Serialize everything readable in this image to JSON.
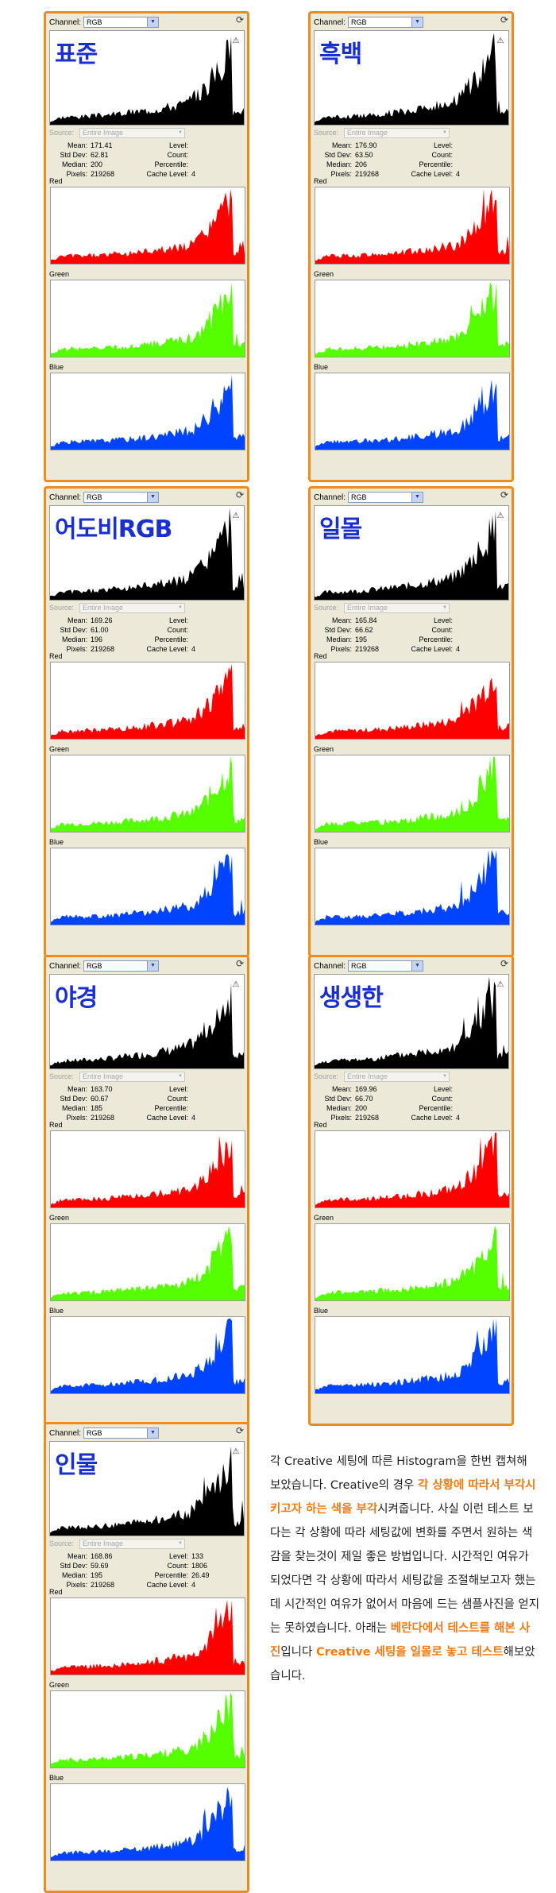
{
  "ui": {
    "channel_label": "Channel:",
    "channel_value": "RGB",
    "source_label": "Source:",
    "source_value": "Entire Image",
    "labels": {
      "mean": "Mean:",
      "std": "Std Dev:",
      "median": "Median:",
      "pixels": "Pixels:",
      "level": "Level:",
      "count": "Count:",
      "percentile": "Percentile:",
      "cache": "Cache Level:"
    },
    "channels": {
      "red": "Red",
      "green": "Green",
      "blue": "Blue"
    }
  },
  "colors": {
    "accent_border": "#ef8a1f",
    "title_blue": "#1a2fd0",
    "red": "#ff0000",
    "green": "#55ff00",
    "blue": "#0044ff",
    "highlight": "#f07b14"
  },
  "panels": [
    {
      "title": "표준",
      "mean": "171.41",
      "std": "62.81",
      "median": "200",
      "pixels": "219268",
      "level": "",
      "count": "",
      "percentile": "",
      "cache": "4"
    },
    {
      "title": "흑백",
      "mean": "176.90",
      "std": "63.50",
      "median": "206",
      "pixels": "219268",
      "level": "",
      "count": "",
      "percentile": "",
      "cache": "4"
    },
    {
      "title": "어도비RGB",
      "mean": "169.26",
      "std": "61.00",
      "median": "196",
      "pixels": "219268",
      "level": "",
      "count": "",
      "percentile": "",
      "cache": "4"
    },
    {
      "title": "일몰",
      "mean": "165.84",
      "std": "66.62",
      "median": "195",
      "pixels": "219268",
      "level": "",
      "count": "",
      "percentile": "",
      "cache": "4"
    },
    {
      "title": "야경",
      "mean": "163.70",
      "std": "60.67",
      "median": "185",
      "pixels": "219268",
      "level": "",
      "count": "",
      "percentile": "",
      "cache": "4"
    },
    {
      "title": "생생한",
      "mean": "169.96",
      "std": "66.70",
      "median": "200",
      "pixels": "219268",
      "level": "",
      "count": "",
      "percentile": "",
      "cache": "4"
    },
    {
      "title": "인물",
      "mean": "168.86",
      "std": "59.69",
      "median": "195",
      "pixels": "219268",
      "level": "133",
      "count": "1806",
      "percentile": "26.49",
      "cache": "4"
    }
  ],
  "description": {
    "p1": "각 Creative 세팅에 따른 Histogram을 한번 캡쳐해 보았습니다. Creative의 경우 ",
    "h1": "각 상황에 따라서 부각시키고자 하는 색을 부각",
    "p2": "시켜줍니다. 사실 이런 테스트 보다는 각 상황에 따라 세팅값에 변화를 주면서 원하는 색감을 찾는것이 제일 좋은 방법입니다. 시간적인 여유가 되었다면 각 상황에 따라서 세팅값을 조절해보고자 했는데 시간적인 여유가 없어서 마음에 드는 샘플사진을 얻지는 못하였습니다. 아래는 ",
    "h2": "베란다에서 테스트를 해본 사진",
    "p3": "입니다 ",
    "h3": "Creative 세팅을 일몰로 놓고 테스트",
    "p4": "해보았습니다."
  }
}
